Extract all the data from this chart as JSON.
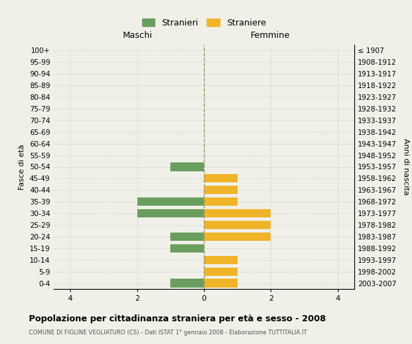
{
  "age_groups": [
    "100+",
    "95-99",
    "90-94",
    "85-89",
    "80-84",
    "75-79",
    "70-74",
    "65-69",
    "60-64",
    "55-59",
    "50-54",
    "45-49",
    "40-44",
    "35-39",
    "30-34",
    "25-29",
    "20-24",
    "15-19",
    "10-14",
    "5-9",
    "0-4"
  ],
  "birth_years": [
    "≤ 1907",
    "1908-1912",
    "1913-1917",
    "1918-1922",
    "1923-1927",
    "1928-1932",
    "1933-1937",
    "1938-1942",
    "1943-1947",
    "1948-1952",
    "1953-1957",
    "1958-1962",
    "1963-1967",
    "1968-1972",
    "1973-1977",
    "1978-1982",
    "1983-1987",
    "1988-1992",
    "1993-1997",
    "1998-2002",
    "2003-2007"
  ],
  "males": [
    0,
    0,
    0,
    0,
    0,
    0,
    0,
    0,
    0,
    0,
    1,
    0,
    0,
    2,
    2,
    0,
    1,
    1,
    0,
    0,
    1
  ],
  "females": [
    0,
    0,
    0,
    0,
    0,
    0,
    0,
    0,
    0,
    0,
    0,
    1,
    1,
    1,
    2,
    2,
    2,
    0,
    1,
    1,
    1
  ],
  "male_color": "#6a9e5e",
  "female_color": "#f0b429",
  "background_color": "#f0f0e8",
  "grid_color": "#cccccc",
  "center_line_color": "#999966",
  "title": "Popolazione per cittadinanza straniera per età e sesso - 2008",
  "subtitle": "COMUNE DI FIGLINE VEGLIATURO (CS) - Dati ISTAT 1° gennaio 2008 - Elaborazione TUTTITALIA.IT",
  "xlabel_left": "Maschi",
  "xlabel_right": "Femmine",
  "ylabel_left": "Fasce di età",
  "ylabel_right": "Anni di nascita",
  "legend_male": "Stranieri",
  "legend_female": "Straniere",
  "xlim": 4.5,
  "xticks": [
    -4,
    -2,
    0,
    2,
    4
  ],
  "xticklabels": [
    "4",
    "2",
    "0",
    "2",
    "4"
  ]
}
